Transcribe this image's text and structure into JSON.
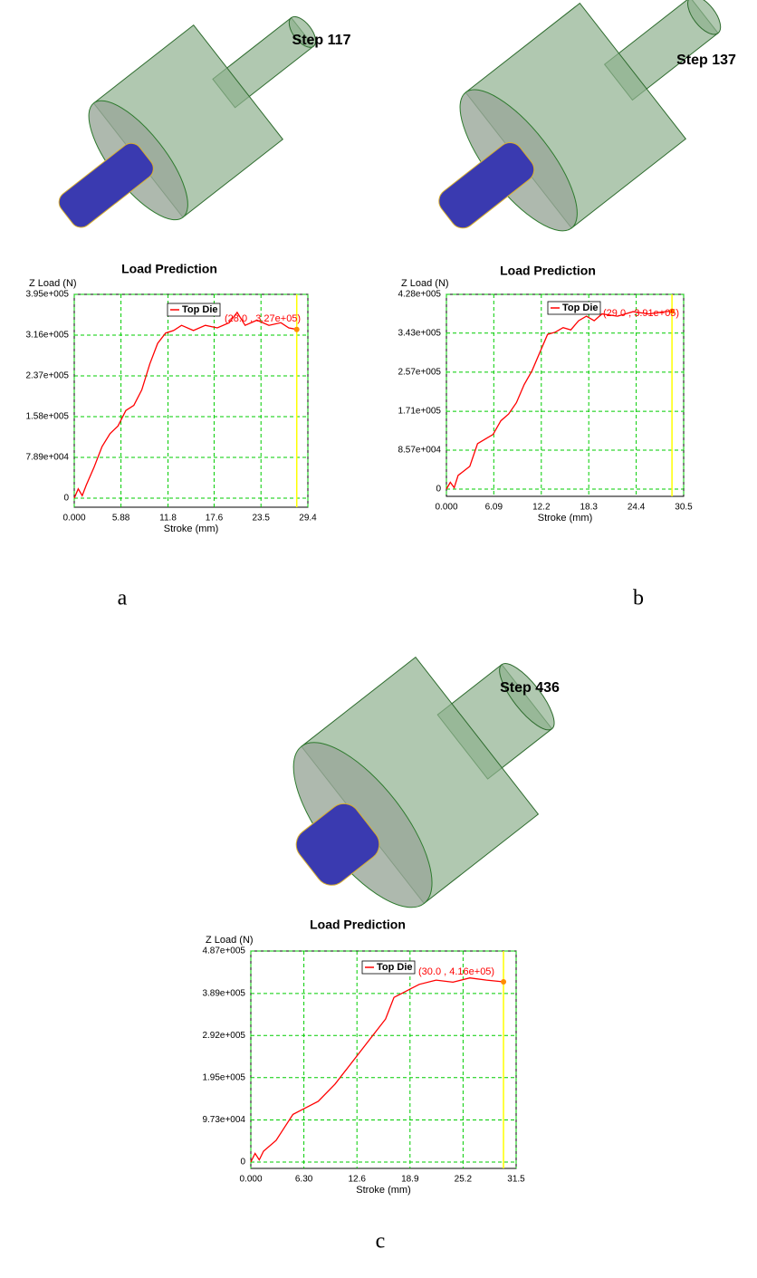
{
  "chart_data": [
    {
      "type": "line",
      "step": "Step 117",
      "title": "Load Prediction",
      "ylabel": "Z Load (N)",
      "xlabel": "Stroke (mm)",
      "panel": "a",
      "xlim": [
        0,
        29.4
      ],
      "xticks": [
        {
          "value": 0,
          "label": "0.000"
        },
        5.88,
        11.8,
        17.6,
        23.5,
        29.4
      ],
      "ylim": [
        0,
        395000
      ],
      "yticks": [
        0,
        {
          "value": 78900,
          "label": "7.89e+004"
        },
        {
          "value": 158000,
          "label": "1.58e+005"
        },
        {
          "value": 237000,
          "label": "2.37e+005"
        },
        {
          "value": 316000,
          "label": "3.16e+005"
        },
        {
          "value": 395000,
          "label": "3.95e+005"
        }
      ],
      "grid": true,
      "grid_color": "#00cc00",
      "cursor_color": "#ffff00",
      "marker": {
        "x": 28.0,
        "y": 327000,
        "label": "(28.0 , 3.27e+05)",
        "color": "#ff8c00"
      },
      "series": [
        {
          "name": "Top Die",
          "color": "#ff0000",
          "x": [
            0,
            0.5,
            1,
            1.5,
            2.5,
            3.5,
            4.5,
            5.5,
            6.5,
            7.5,
            8.5,
            9.5,
            10.5,
            11.5,
            12.5,
            13.5,
            15,
            16.5,
            18,
            19.5,
            20.5,
            21.5,
            23,
            24.5,
            26,
            27,
            28
          ],
          "values": [
            0,
            18000,
            5000,
            25000,
            60000,
            100000,
            125000,
            140000,
            170000,
            180000,
            210000,
            260000,
            300000,
            320000,
            325000,
            335000,
            325000,
            335000,
            330000,
            340000,
            360000,
            335000,
            345000,
            335000,
            340000,
            330000,
            327000
          ]
        }
      ]
    },
    {
      "type": "line",
      "step": "Step 137",
      "title": "Load Prediction",
      "ylabel": "Z Load (N)",
      "xlabel": "Stroke (mm)",
      "panel": "b",
      "xlim": [
        0,
        30.5
      ],
      "xticks": [
        {
          "value": 0,
          "label": "0.000"
        },
        6.09,
        12.2,
        18.3,
        24.4,
        30.5
      ],
      "ylim": [
        0,
        428000
      ],
      "yticks": [
        0,
        {
          "value": 85700,
          "label": "8.57e+004"
        },
        {
          "value": 171000,
          "label": "1.71e+005"
        },
        {
          "value": 257000,
          "label": "2.57e+005"
        },
        {
          "value": 343000,
          "label": "3.43e+005"
        },
        {
          "value": 428000,
          "label": "4.28e+005"
        }
      ],
      "grid": true,
      "grid_color": "#00cc00",
      "cursor_color": "#ffff00",
      "marker": {
        "x": 29.0,
        "y": 391000,
        "label": "(29.0 , 3.91e+05)",
        "color": "#ff8c00"
      },
      "series": [
        {
          "name": "Top Die",
          "color": "#ff0000",
          "x": [
            0,
            0.5,
            1,
            1.5,
            3,
            4,
            5,
            6,
            7,
            8,
            9,
            10,
            11,
            12,
            13,
            14,
            15,
            16,
            17,
            18,
            19,
            20,
            22,
            24,
            26,
            28,
            29
          ],
          "values": [
            0,
            15000,
            3000,
            30000,
            50000,
            100000,
            110000,
            120000,
            150000,
            165000,
            190000,
            230000,
            260000,
            300000,
            340000,
            345000,
            355000,
            350000,
            370000,
            380000,
            370000,
            385000,
            380000,
            390000,
            385000,
            390000,
            391000
          ]
        }
      ]
    },
    {
      "type": "line",
      "step": "Step 436",
      "title": "Load Prediction",
      "ylabel": "Z Load (N)",
      "xlabel": "Stroke (mm)",
      "panel": "c",
      "xlim": [
        0,
        31.5
      ],
      "xticks": [
        {
          "value": 0,
          "label": "0.000"
        },
        {
          "value": 6.3,
          "label": "6.30"
        },
        12.6,
        18.9,
        25.2,
        31.5
      ],
      "ylim": [
        0,
        487000
      ],
      "yticks": [
        0,
        {
          "value": 97300,
          "label": "9.73e+004"
        },
        {
          "value": 195000,
          "label": "1.95e+005"
        },
        {
          "value": 292000,
          "label": "2.92e+005"
        },
        {
          "value": 389000,
          "label": "3.89e+005"
        },
        {
          "value": 487000,
          "label": "4.87e+005"
        }
      ],
      "grid": true,
      "grid_color": "#00cc00",
      "cursor_color": "#ffff00",
      "marker": {
        "x": 30.0,
        "y": 416000,
        "label": "(30.0 , 4.16e+05)",
        "color": "#ff8c00"
      },
      "series": [
        {
          "name": "Top Die",
          "color": "#ff0000",
          "x": [
            0,
            0.5,
            1,
            1.5,
            3,
            4,
            5,
            6,
            8,
            10,
            12,
            14,
            16,
            17,
            18,
            19,
            20,
            22,
            24,
            26,
            28,
            30
          ],
          "values": [
            0,
            20000,
            5000,
            25000,
            50000,
            80000,
            110000,
            120000,
            140000,
            180000,
            230000,
            280000,
            330000,
            380000,
            390000,
            400000,
            410000,
            420000,
            415000,
            425000,
            420000,
            416000
          ]
        }
      ]
    }
  ]
}
